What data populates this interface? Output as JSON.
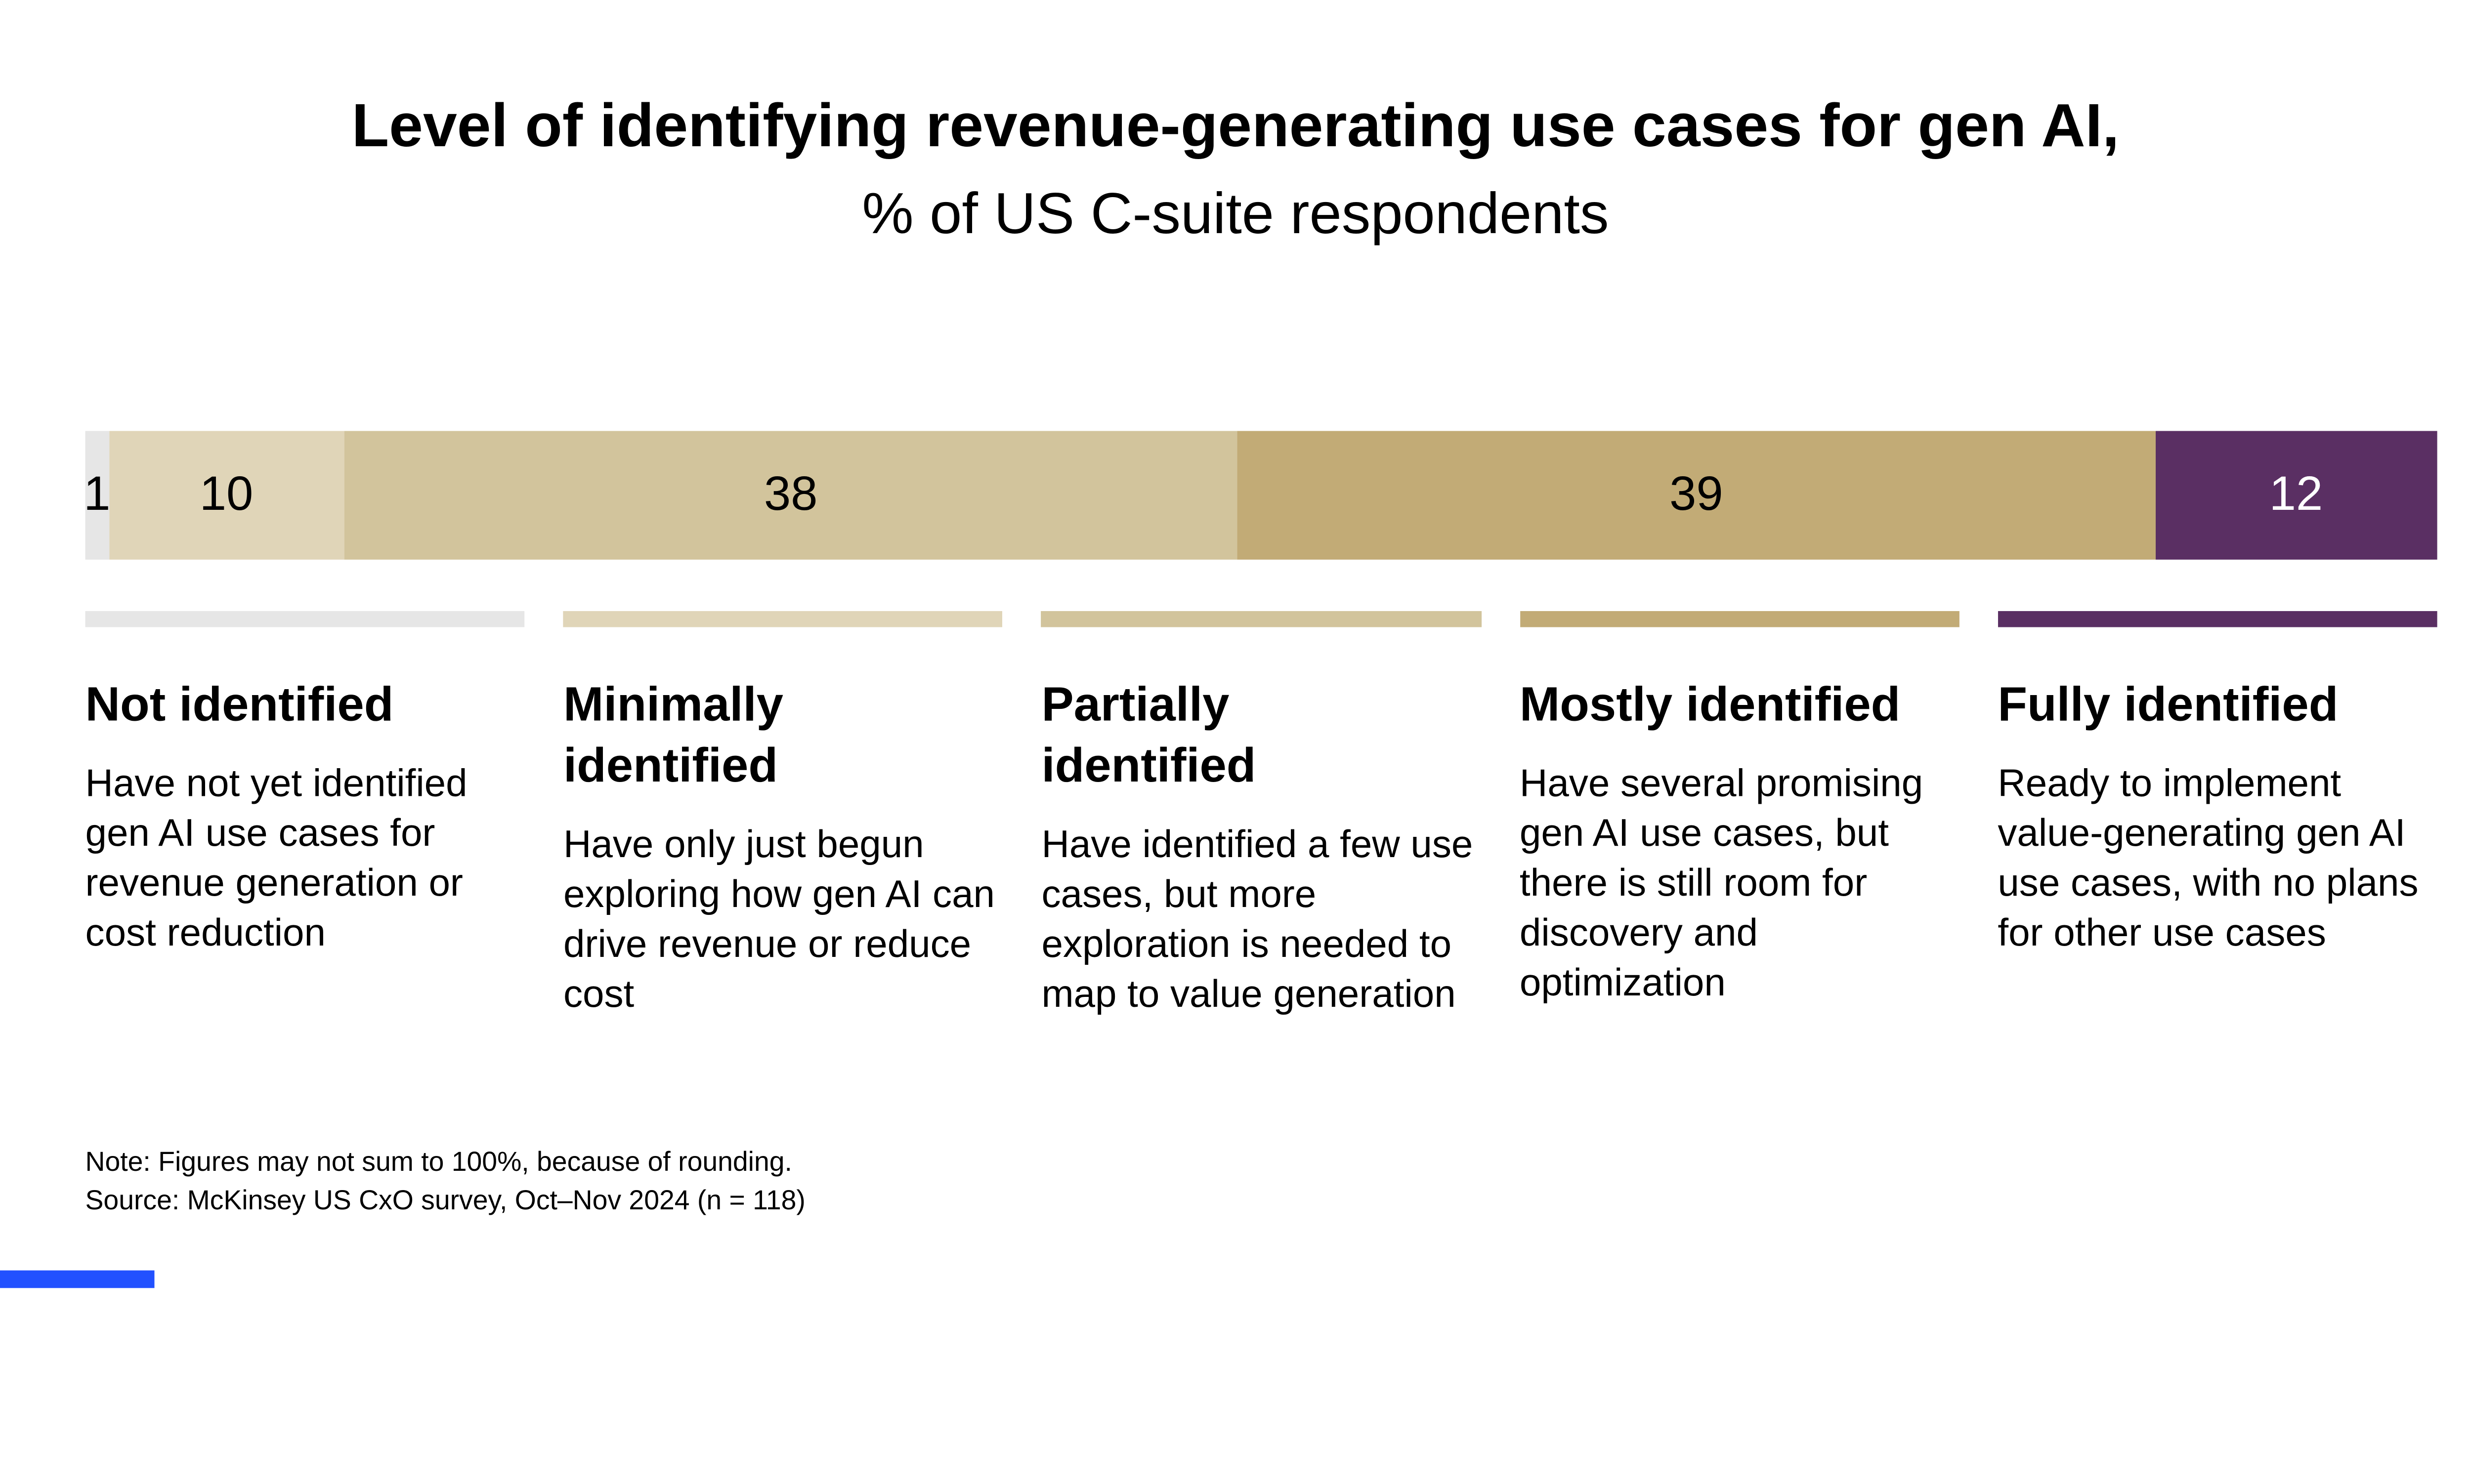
{
  "title": "Level of identifying revenue-generating use cases for gen AI,",
  "subtitle": "% of US C-suite respondents",
  "note": "Note: Figures may not sum to 100%, because of rounding.",
  "source": "Source: McKinsey US CxO survey, Oct–Nov 2024 (n = 118)",
  "accent_color": "#2251ff",
  "chart_data": {
    "type": "bar",
    "variant": "stacked-horizontal",
    "title": "Level of identifying revenue-generating use cases for gen AI",
    "subtitle": "% of US C-suite respondents",
    "unit": "%",
    "xlim": [
      0,
      100
    ],
    "grid": false,
    "legend_position": "below",
    "categories": [
      "Not identified",
      "Minimally identified",
      "Partially identified",
      "Mostly identified",
      "Fully identified"
    ],
    "values": [
      1,
      10,
      38,
      39,
      12
    ],
    "segments": [
      {
        "label": "Not identified",
        "value": 1,
        "color": "#e6e6e6",
        "value_text_color": "#000000"
      },
      {
        "label": "Minimally identified",
        "value": 10,
        "color": "#e0d5b8",
        "value_text_color": "#000000"
      },
      {
        "label": "Partially identified",
        "value": 38,
        "color": "#d2c49c",
        "value_text_color": "#000000"
      },
      {
        "label": "Mostly identified",
        "value": 39,
        "color": "#c2ab76",
        "value_text_color": "#000000"
      },
      {
        "label": "Fully identified",
        "value": 12,
        "color": "#5a2f63",
        "value_text_color": "#ffffff"
      }
    ]
  },
  "categories": [
    {
      "heading": "Not identified",
      "description": "Have not yet identified gen AI use cases for revenue generation or cost reduction",
      "color": "#e6e6e6"
    },
    {
      "heading": "Minimally\nidentified",
      "description": "Have only just begun exploring how gen AI can drive revenue or reduce cost",
      "color": "#e0d5b8"
    },
    {
      "heading": "Partially\nidentified",
      "description": "Have identified a few use cases, but more exploration is needed to map to value generation",
      "color": "#d2c49c"
    },
    {
      "heading": "Mostly identified",
      "description": "Have several promising gen AI use cases, but there is still room for discovery and optimization",
      "color": "#c2ab76"
    },
    {
      "heading": "Fully identified",
      "description": "Ready to implement value-generating gen AI use cases, with no plans for other use cases",
      "color": "#5a2f63"
    }
  ]
}
